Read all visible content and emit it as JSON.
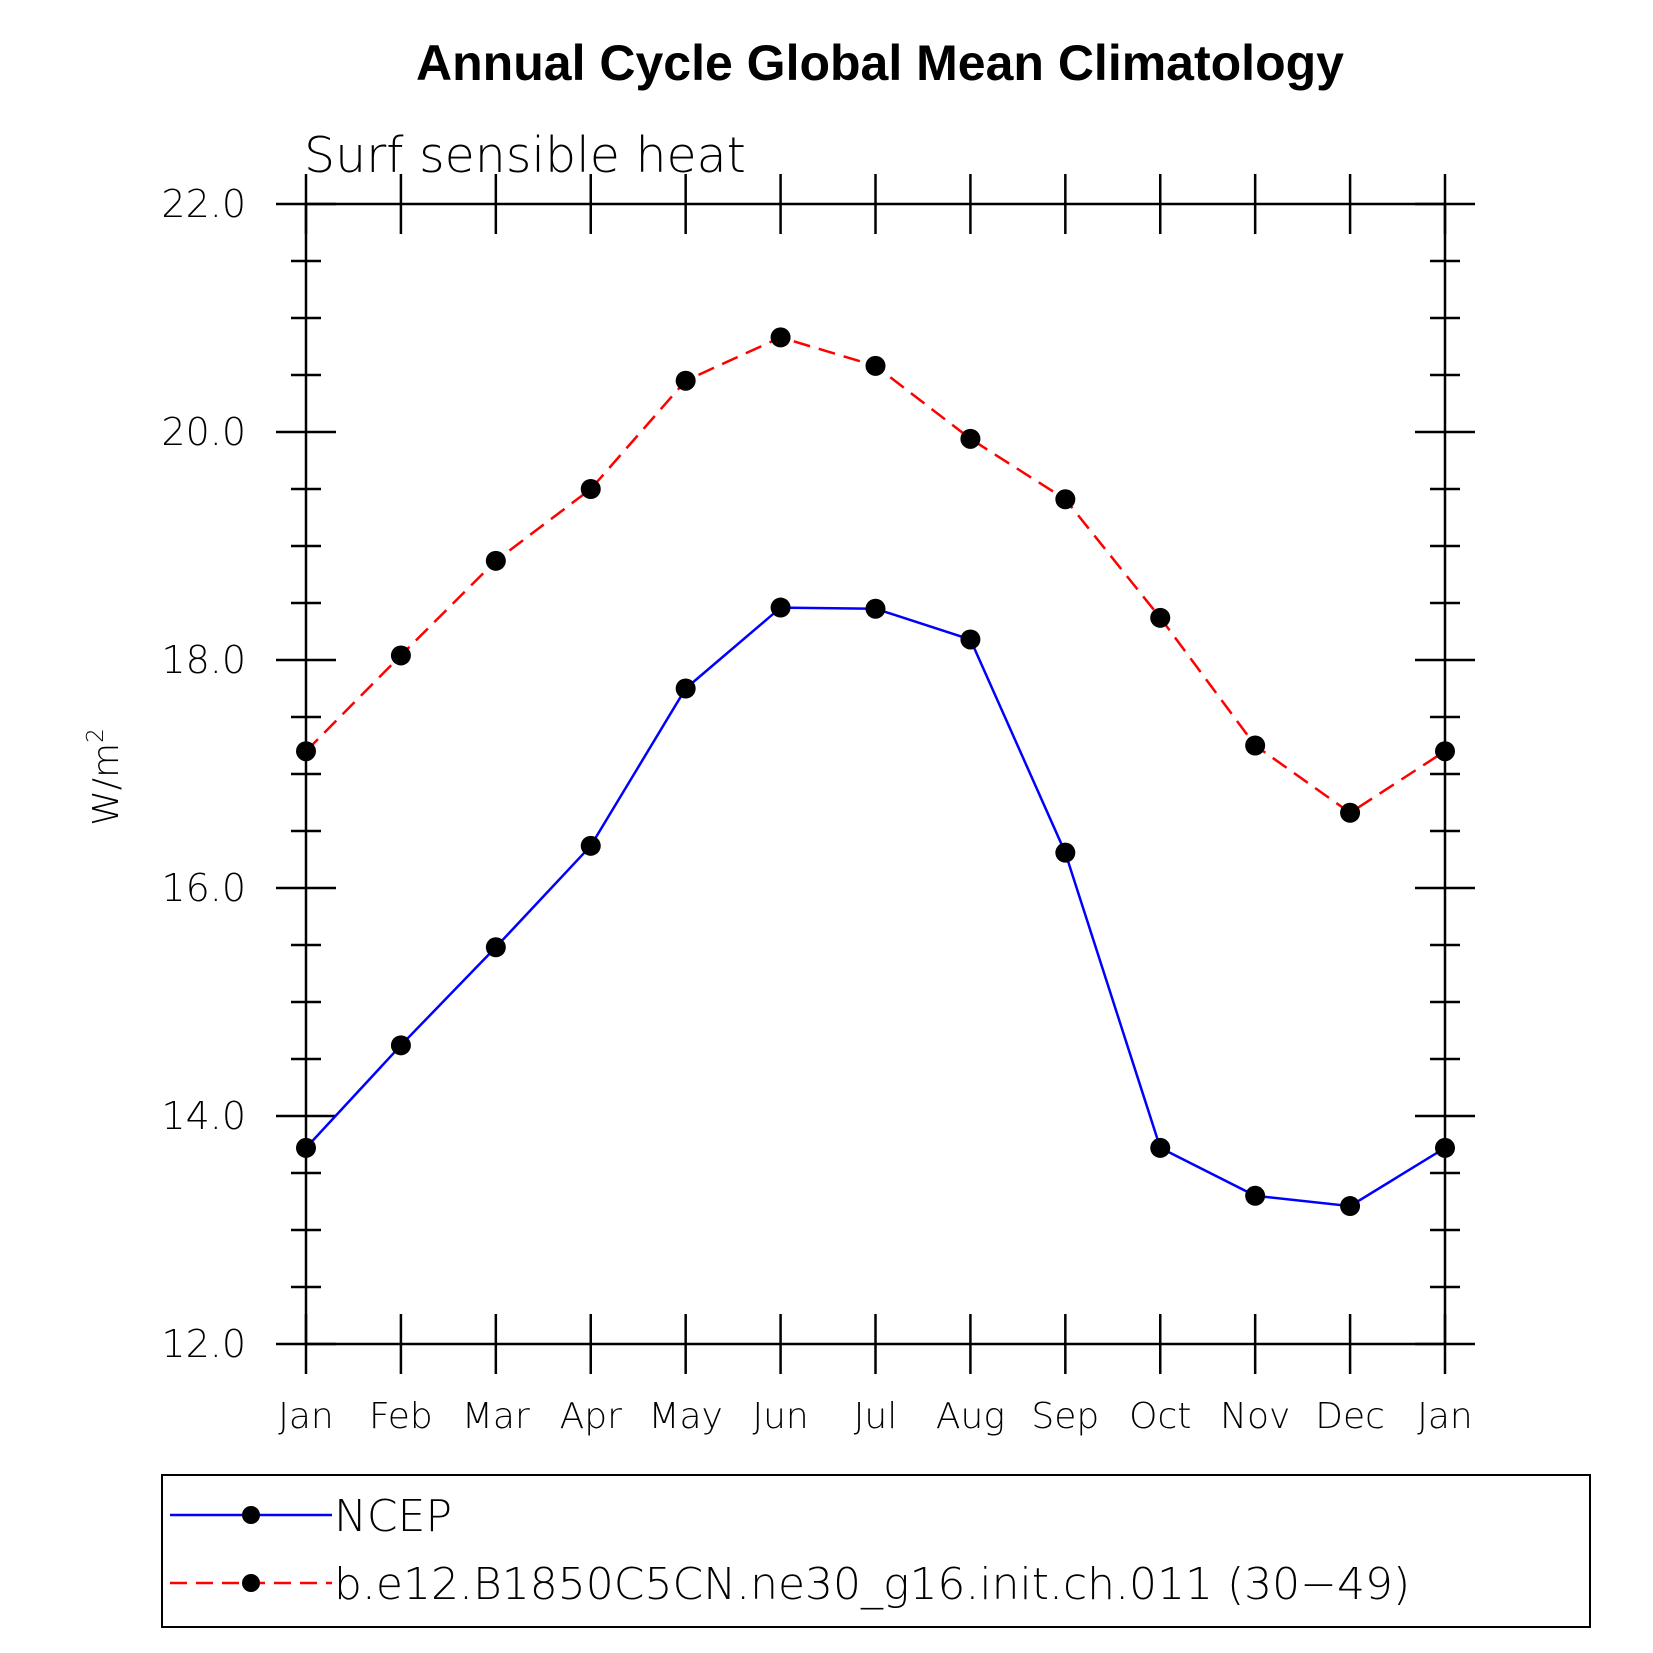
{
  "chart_data": {
    "type": "line",
    "title": "Annual Cycle Global Mean Climatology",
    "subtitle": "Surf sensible heat",
    "ylabel": "W/m",
    "ylabel_superscript": "2",
    "ylim": [
      12.0,
      22.0
    ],
    "yticks": [
      "12.0",
      "14.0",
      "16.0",
      "18.0",
      "20.0",
      "22.0"
    ],
    "categories": [
      "Jan",
      "Feb",
      "Mar",
      "Apr",
      "May",
      "Jun",
      "Jul",
      "Aug",
      "Sep",
      "Oct",
      "Nov",
      "Dec",
      "Jan"
    ],
    "series": [
      {
        "name": "NCEP",
        "color": "#0000ff",
        "dash": "solid",
        "marker": "filled-circle",
        "values": [
          13.72,
          14.62,
          15.48,
          16.37,
          17.75,
          18.46,
          18.45,
          18.18,
          16.31,
          13.72,
          13.3,
          13.21,
          13.72
        ]
      },
      {
        "name": "b.e12.B1850C5CN.ne30_g16.init.ch.011 (30−49)",
        "color": "#ff0000",
        "dash": "dashed",
        "marker": "filled-circle",
        "values": [
          17.2,
          18.04,
          18.87,
          19.5,
          20.45,
          20.83,
          20.58,
          19.94,
          19.41,
          18.37,
          17.25,
          16.66,
          17.2
        ]
      }
    ],
    "legend_position": "bottom"
  }
}
